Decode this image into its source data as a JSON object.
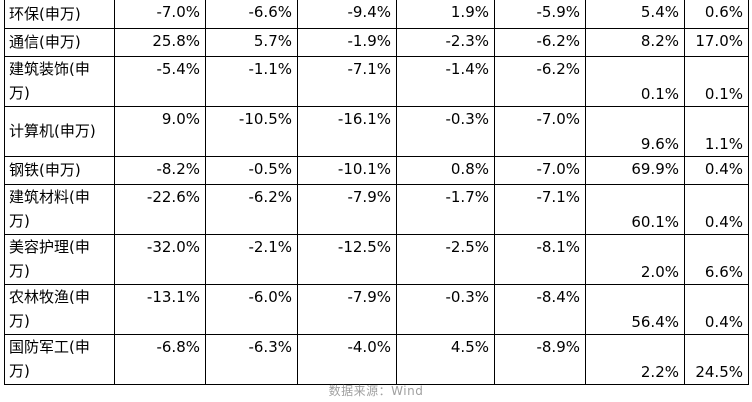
{
  "table": {
    "rows": [
      {
        "name": "环保(申万)",
        "v1": "-7.0%",
        "v2": "-6.6%",
        "v3": "-9.4%",
        "v4": "1.9%",
        "v5": "-5.9%",
        "v6": "5.4%",
        "v7": "0.6%"
      },
      {
        "name": "通信(申万)",
        "v1": "25.8%",
        "v2": "5.7%",
        "v3": "-1.9%",
        "v4": "-2.3%",
        "v5": "-6.2%",
        "v6": "8.2%",
        "v7": "17.0%"
      },
      {
        "name": "建筑装饰(申万)",
        "v1": "-5.4%",
        "v2": "-1.1%",
        "v3": "-7.1%",
        "v4": "-1.4%",
        "v5": "-6.2%",
        "v6": "0.1%",
        "v7": "0.1%"
      },
      {
        "name": "计算机(申万)",
        "v1": "9.0%",
        "v2": "-10.5%",
        "v3": "-16.1%",
        "v4": "-0.3%",
        "v5": "-7.0%",
        "v6": "9.6%",
        "v7": "1.1%"
      },
      {
        "name": "钢铁(申万)",
        "v1": "-8.2%",
        "v2": "-0.5%",
        "v3": "-10.1%",
        "v4": "0.8%",
        "v5": "-7.0%",
        "v6": "69.9%",
        "v7": "0.4%"
      },
      {
        "name": "建筑材料(申万)",
        "v1": "-22.6%",
        "v2": "-6.2%",
        "v3": "-7.9%",
        "v4": "-1.7%",
        "v5": "-7.1%",
        "v6": "60.1%",
        "v7": "0.4%"
      },
      {
        "name": "美容护理(申万)",
        "v1": "-32.0%",
        "v2": "-2.1%",
        "v3": "-12.5%",
        "v4": "-2.5%",
        "v5": "-8.1%",
        "v6": "2.0%",
        "v7": "6.6%"
      },
      {
        "name": "农林牧渔(申万)",
        "v1": "-13.1%",
        "v2": "-6.0%",
        "v3": "-7.9%",
        "v4": "-0.3%",
        "v5": "-8.4%",
        "v6": "56.4%",
        "v7": "0.4%"
      },
      {
        "name": "国防军工(申万)",
        "v1": "-6.8%",
        "v2": "-6.3%",
        "v3": "-4.0%",
        "v4": "4.5%",
        "v5": "-8.9%",
        "v6": "2.2%",
        "v7": "24.5%"
      }
    ]
  },
  "source": "数据来源：Wind"
}
